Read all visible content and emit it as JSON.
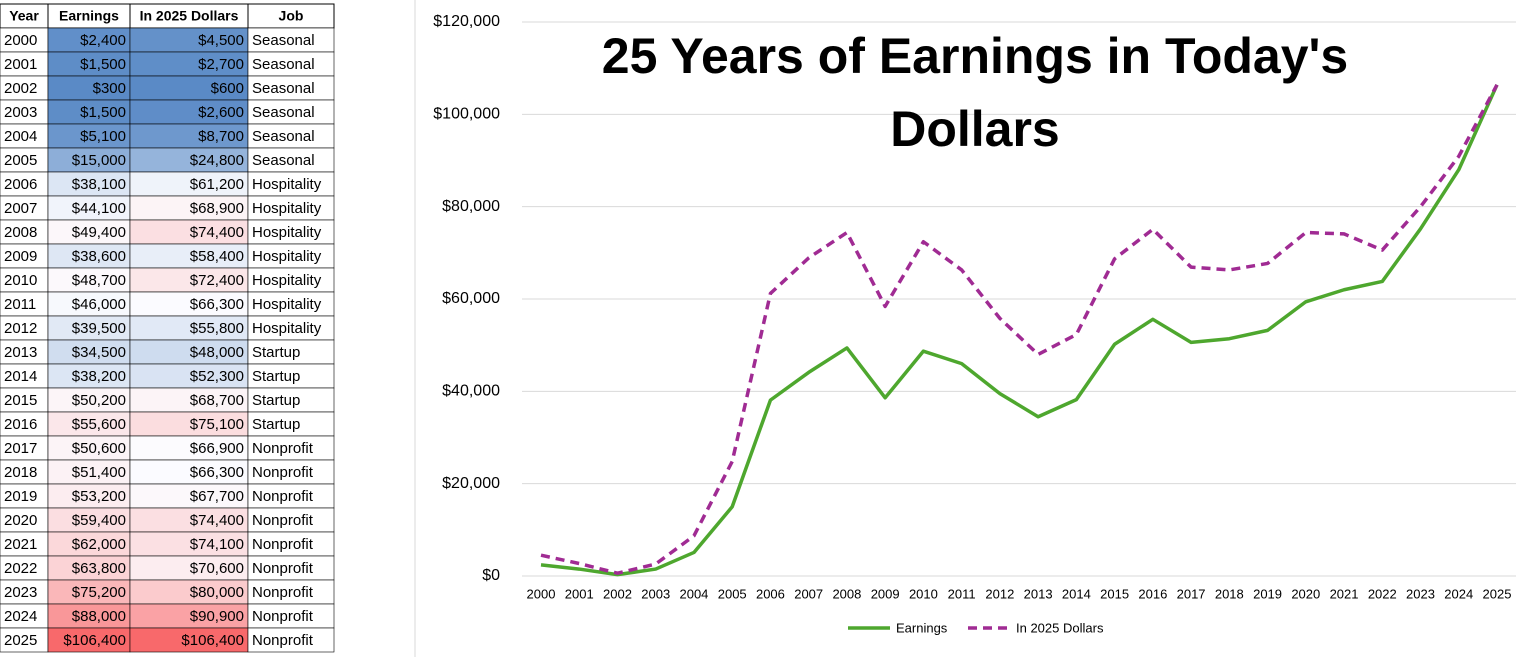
{
  "table": {
    "header": [
      "Year",
      "Earnings",
      "In 2025 Dollars",
      "Job"
    ],
    "rows": [
      [
        "2000",
        "$2,400",
        "$4,500",
        "Seasonal"
      ],
      [
        "2001",
        "$1,500",
        "$2,700",
        "Seasonal"
      ],
      [
        "2002",
        "$300",
        "$600",
        "Seasonal"
      ],
      [
        "2003",
        "$1,500",
        "$2,600",
        "Seasonal"
      ],
      [
        "2004",
        "$5,100",
        "$8,700",
        "Seasonal"
      ],
      [
        "2005",
        "$15,000",
        "$24,800",
        "Seasonal"
      ],
      [
        "2006",
        "$38,100",
        "$61,200",
        "Hospitality"
      ],
      [
        "2007",
        "$44,100",
        "$68,900",
        "Hospitality"
      ],
      [
        "2008",
        "$49,400",
        "$74,400",
        "Hospitality"
      ],
      [
        "2009",
        "$38,600",
        "$58,400",
        "Hospitality"
      ],
      [
        "2010",
        "$48,700",
        "$72,400",
        "Hospitality"
      ],
      [
        "2011",
        "$46,000",
        "$66,300",
        "Hospitality"
      ],
      [
        "2012",
        "$39,500",
        "$55,800",
        "Hospitality"
      ],
      [
        "2013",
        "$34,500",
        "$48,000",
        "Startup"
      ],
      [
        "2014",
        "$38,200",
        "$52,300",
        "Startup"
      ],
      [
        "2015",
        "$50,200",
        "$68,700",
        "Startup"
      ],
      [
        "2016",
        "$55,600",
        "$75,100",
        "Startup"
      ],
      [
        "2017",
        "$50,600",
        "$66,900",
        "Nonprofit"
      ],
      [
        "2018",
        "$51,400",
        "$66,300",
        "Nonprofit"
      ],
      [
        "2019",
        "$53,200",
        "$67,700",
        "Nonprofit"
      ],
      [
        "2020",
        "$59,400",
        "$74,400",
        "Nonprofit"
      ],
      [
        "2021",
        "$62,000",
        "$74,100",
        "Nonprofit"
      ],
      [
        "2022",
        "$63,800",
        "$70,600",
        "Nonprofit"
      ],
      [
        "2023",
        "$75,200",
        "$80,000",
        "Nonprofit"
      ],
      [
        "2024",
        "$88,000",
        "$90,900",
        "Nonprofit"
      ],
      [
        "2025",
        "$106,400",
        "$106,400",
        "Nonprofit"
      ]
    ]
  },
  "chart_data": {
    "type": "line",
    "title": "25 Years of Earnings in Today's Dollars",
    "categories": [
      "2000",
      "2001",
      "2002",
      "2003",
      "2004",
      "2005",
      "2006",
      "2007",
      "2008",
      "2009",
      "2010",
      "2011",
      "2012",
      "2013",
      "2014",
      "2015",
      "2016",
      "2017",
      "2018",
      "2019",
      "2020",
      "2021",
      "2022",
      "2023",
      "2024",
      "2025"
    ],
    "series": [
      {
        "name": "Earnings",
        "color": "#4ea72e",
        "dash": false,
        "values": [
          2400,
          1500,
          300,
          1500,
          5100,
          15000,
          38100,
          44100,
          49400,
          38600,
          48700,
          46000,
          39500,
          34500,
          38200,
          50200,
          55600,
          50600,
          51400,
          53200,
          59400,
          62000,
          63800,
          75200,
          88000,
          106400
        ]
      },
      {
        "name": "In 2025 Dollars",
        "color": "#a02b93",
        "dash": true,
        "values": [
          4500,
          2700,
          600,
          2600,
          8700,
          24800,
          61200,
          68900,
          74400,
          58400,
          72400,
          66300,
          55800,
          48000,
          52300,
          68700,
          75100,
          66900,
          66300,
          67700,
          74400,
          74100,
          70600,
          80000,
          90900,
          106400
        ]
      }
    ],
    "ylim": [
      0,
      120000
    ],
    "yticks": [
      {
        "value": 0,
        "label": "$0"
      },
      {
        "value": 20000,
        "label": "$20,000"
      },
      {
        "value": 40000,
        "label": "$40,000"
      },
      {
        "value": 60000,
        "label": "$60,000"
      },
      {
        "value": 80000,
        "label": "$80,000"
      },
      {
        "value": 100000,
        "label": "$100,000"
      },
      {
        "value": 120000,
        "label": "$120,000"
      }
    ],
    "grid": true,
    "legend": "bottom"
  }
}
